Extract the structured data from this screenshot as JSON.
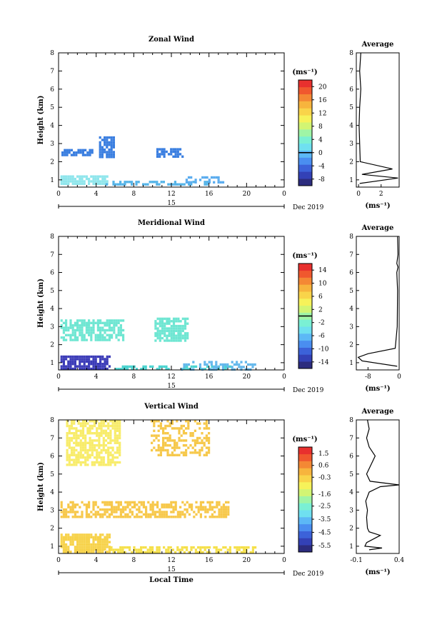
{
  "chart_data": [
    {
      "type": "heatmap",
      "title": "Zonal Wind",
      "xlabel": "",
      "ylabel": "Height (km)",
      "x_ticks": [
        "0",
        "4",
        "8",
        "12",
        "16",
        "20",
        "0"
      ],
      "x_range": [
        0,
        24
      ],
      "day_label": "15",
      "month_label": "Dec 2019",
      "y_ticks": [
        "1",
        "2",
        "3",
        "4",
        "5",
        "6",
        "7",
        "8"
      ],
      "y_range": [
        0.6,
        8.0
      ],
      "colorbar": {
        "unit": "(ms⁻¹)",
        "ticks": [
          "20",
          "16",
          "12",
          "8",
          "4",
          "0",
          "-4",
          "-8"
        ],
        "range": [
          -10,
          22
        ],
        "zero_line": 0
      },
      "blobs": [
        {
          "t0": 0.2,
          "t1": 5.2,
          "h0": 0.72,
          "h1": 1.25,
          "color": "#8fe6ec",
          "density": 0.85
        },
        {
          "t0": 5.0,
          "t1": 16.0,
          "h0": 0.72,
          "h1": 0.95,
          "color": "#55b4e8",
          "density": 0.55
        },
        {
          "t0": 13.5,
          "t1": 17.5,
          "h0": 0.8,
          "h1": 1.2,
          "color": "#5aacee",
          "density": 0.55
        },
        {
          "t0": 0.3,
          "t1": 3.5,
          "h0": 2.3,
          "h1": 2.7,
          "color": "#3a7ee0",
          "density": 0.75
        },
        {
          "t0": 4.3,
          "t1": 6.0,
          "h0": 2.2,
          "h1": 3.4,
          "color": "#3a7ee0",
          "density": 0.8
        },
        {
          "t0": 10.4,
          "t1": 13.2,
          "h0": 2.3,
          "h1": 2.75,
          "color": "#3a7ee0",
          "density": 0.75
        }
      ],
      "average": {
        "title": "Average",
        "xlabel": "(ms⁻¹)",
        "x_ticks": [
          "0",
          "2"
        ],
        "x_range": [
          -0.2,
          3.6
        ],
        "profile": [
          [
            0.1,
            0.8
          ],
          [
            3.5,
            1.1
          ],
          [
            0.3,
            1.3
          ],
          [
            3.0,
            1.6
          ],
          [
            0.15,
            2.0
          ],
          [
            0.1,
            3.0
          ],
          [
            0.05,
            4.0
          ],
          [
            0.1,
            5.0
          ],
          [
            0.2,
            6.0
          ],
          [
            0.1,
            7.0
          ],
          [
            0.2,
            8.0
          ]
        ]
      }
    },
    {
      "type": "heatmap",
      "title": "Meridional Wind",
      "xlabel": "",
      "ylabel": "Height (km)",
      "x_ticks": [
        "0",
        "4",
        "8",
        "12",
        "16",
        "20",
        "0"
      ],
      "x_range": [
        0,
        24
      ],
      "day_label": "15",
      "month_label": "Dec 2019",
      "y_ticks": [
        "1",
        "2",
        "3",
        "4",
        "5",
        "6",
        "7",
        "8"
      ],
      "y_range": [
        0.6,
        8.0
      ],
      "colorbar": {
        "unit": "(ms⁻¹)",
        "ticks": [
          "14",
          "10",
          "6",
          "2",
          "-2",
          "-6",
          "-10",
          "-14"
        ],
        "range": [
          -16,
          16
        ],
        "zero_line": 0
      },
      "blobs": [
        {
          "t0": 0.2,
          "t1": 5.5,
          "h0": 0.65,
          "h1": 1.4,
          "color": "#3c3cb8",
          "density": 0.85
        },
        {
          "t0": 6.0,
          "t1": 18.5,
          "h0": 0.65,
          "h1": 0.85,
          "color": "#4ad4d0",
          "density": 0.5
        },
        {
          "t0": 13.0,
          "t1": 21.0,
          "h0": 0.65,
          "h1": 1.1,
          "color": "#64b8ec",
          "density": 0.45
        },
        {
          "t0": 0.2,
          "t1": 7.0,
          "h0": 2.2,
          "h1": 3.4,
          "color": "#6fe6d2",
          "density": 0.7
        },
        {
          "t0": 10.2,
          "t1": 13.8,
          "h0": 2.2,
          "h1": 3.5,
          "color": "#6fe6d2",
          "density": 0.75
        }
      ],
      "average": {
        "title": "Average",
        "xlabel": "(ms⁻¹)",
        "x_ticks": [
          "-8",
          "0"
        ],
        "x_range": [
          -11,
          0
        ],
        "profile": [
          [
            -0.5,
            0.8
          ],
          [
            -9.5,
            1.1
          ],
          [
            -10.5,
            1.3
          ],
          [
            -8.0,
            1.5
          ],
          [
            -1.0,
            1.8
          ],
          [
            -0.5,
            3.0
          ],
          [
            -0.4,
            5.0
          ],
          [
            -0.6,
            6.0
          ],
          [
            -0.3,
            6.3
          ],
          [
            -0.6,
            6.5
          ],
          [
            -0.3,
            7.0
          ],
          [
            -0.4,
            8.0
          ]
        ]
      }
    },
    {
      "type": "heatmap",
      "title": "Vertical Wind",
      "xlabel": "Local Time",
      "ylabel": "Height (km)",
      "x_ticks": [
        "0",
        "4",
        "8",
        "12",
        "16",
        "20",
        "0"
      ],
      "x_range": [
        0,
        24
      ],
      "day_label": "15",
      "month_label": "Dec 2019",
      "y_ticks": [
        "1",
        "2",
        "3",
        "4",
        "5",
        "6",
        "7",
        "8"
      ],
      "y_range": [
        0.6,
        8.0
      ],
      "colorbar": {
        "unit": "(ms⁻¹)",
        "ticks": [
          "1.5",
          "0.6",
          "-0.3",
          "-1.6",
          "-2.5",
          "-3.5",
          "-4.5",
          "-5.5"
        ],
        "range": [
          -6.0,
          2.0
        ],
        "zero_line": null
      },
      "blobs": [
        {
          "t0": 0.2,
          "t1": 5.5,
          "h0": 0.65,
          "h1": 1.7,
          "color": "#f7d24a",
          "density": 0.85
        },
        {
          "t0": 5.5,
          "t1": 21.0,
          "h0": 0.65,
          "h1": 1.0,
          "color": "#f5e04a",
          "density": 0.6
        },
        {
          "t0": 0.2,
          "t1": 18.0,
          "h0": 2.6,
          "h1": 3.5,
          "color": "#f7c84a",
          "density": 0.6
        },
        {
          "t0": 0.8,
          "t1": 6.5,
          "h0": 5.5,
          "h1": 8.0,
          "color": "#f8ec6a",
          "density": 0.7
        },
        {
          "t0": 9.8,
          "t1": 16.0,
          "h0": 6.0,
          "h1": 8.0,
          "color": "#f6c84a",
          "density": 0.45
        }
      ],
      "average": {
        "title": "Average",
        "xlabel": "(ms⁻¹)",
        "x_ticks": [
          "-0.1",
          "0.4"
        ],
        "x_range": [
          -0.1,
          0.4
        ],
        "profile": [
          [
            0.05,
            0.8
          ],
          [
            0.2,
            0.9
          ],
          [
            0.0,
            1.0
          ],
          [
            0.02,
            1.2
          ],
          [
            0.18,
            1.6
          ],
          [
            0.05,
            1.8
          ],
          [
            0.03,
            2.0
          ],
          [
            0.02,
            2.6
          ],
          [
            0.03,
            3.0
          ],
          [
            0.01,
            3.5
          ],
          [
            0.05,
            4.0
          ],
          [
            0.18,
            4.3
          ],
          [
            0.4,
            4.4
          ],
          [
            0.06,
            4.6
          ],
          [
            0.02,
            5.0
          ],
          [
            0.1,
            5.8
          ],
          [
            0.12,
            6.0
          ],
          [
            0.05,
            6.5
          ],
          [
            0.02,
            7.0
          ],
          [
            0.05,
            7.5
          ],
          [
            0.03,
            8.0
          ]
        ]
      }
    }
  ]
}
